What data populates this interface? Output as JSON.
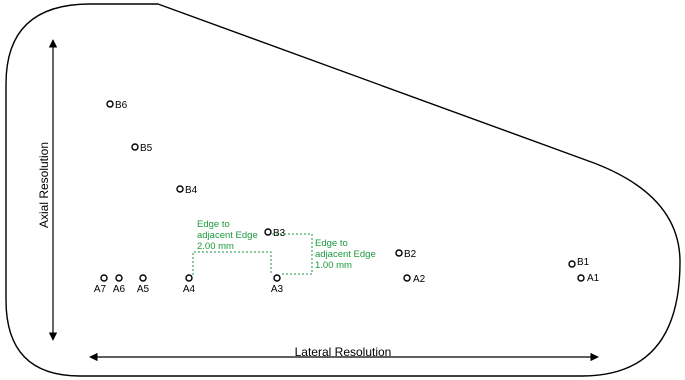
{
  "axes": {
    "axial_label": "Axial Resolution",
    "lateral_label": "Lateral Resolution"
  },
  "points": {
    "B6": "B6",
    "B5": "B5",
    "B4": "B4",
    "B3": "B3",
    "B2": "B2",
    "B1": "B1",
    "A1": "A1",
    "A2": "A2",
    "A3": "A3",
    "A4": "A4",
    "A5": "A5",
    "A6": "A6",
    "A7": "A7"
  },
  "annotations": {
    "lateral_edge": [
      "Edge to",
      "adjacent Edge",
      "2.00 mm"
    ],
    "axial_edge": [
      "Edge to",
      "adjacent Edge",
      "1.00 mm"
    ]
  },
  "colors": {
    "annotation": "#1a9a3c",
    "outline": "#000000"
  }
}
